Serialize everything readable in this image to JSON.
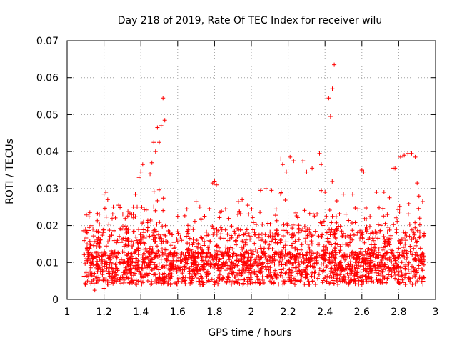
{
  "chart_data": {
    "type": "scatter",
    "title": "Day 218 of 2019, Rate Of TEC Index for receiver wilu",
    "xlabel": "GPS time / hours",
    "ylabel": "ROTI / TECUs",
    "xlim": [
      1,
      3
    ],
    "ylim": [
      0,
      0.07
    ],
    "xticks": [
      1,
      1.2,
      1.4,
      1.6,
      1.8,
      2,
      2.2,
      2.4,
      2.6,
      2.8,
      3
    ],
    "xtick_labels": [
      "1",
      "1.2",
      "1.4",
      "1.6",
      "1.8",
      "2",
      "2.2",
      "2.4",
      "2.6",
      "2.8",
      "3"
    ],
    "yticks": [
      0,
      0.01,
      0.02,
      0.03,
      0.04,
      0.05,
      0.06,
      0.07
    ],
    "ytick_labels": [
      "0",
      "0.01",
      "0.02",
      "0.03",
      "0.04",
      "0.05",
      "0.06",
      "0.07"
    ],
    "grid": true,
    "marker": "+",
    "marker_color": "#ff0000",
    "series": [
      {
        "name": "ROTI",
        "x_range": [
          1.09,
          2.94
        ],
        "approx_point_count": 2400,
        "note": "dense band mostly between 0.003 and 0.02 TECU; values below are representative readings of the visible peaks and envelope",
        "points": [
          [
            1.1,
            0.019
          ],
          [
            1.12,
            0.0195
          ],
          [
            1.14,
            0.019
          ],
          [
            1.16,
            0.0185
          ],
          [
            1.2,
            0.0285
          ],
          [
            1.21,
            0.029
          ],
          [
            1.22,
            0.027
          ],
          [
            1.25,
            0.025
          ],
          [
            1.28,
            0.0255
          ],
          [
            1.35,
            0.023
          ],
          [
            1.38,
            0.025
          ],
          [
            1.39,
            0.033
          ],
          [
            1.4,
            0.0345
          ],
          [
            1.41,
            0.0365
          ],
          [
            1.45,
            0.034
          ],
          [
            1.46,
            0.037
          ],
          [
            1.47,
            0.0425
          ],
          [
            1.48,
            0.04
          ],
          [
            1.49,
            0.0465
          ],
          [
            1.5,
            0.0425
          ],
          [
            1.51,
            0.047
          ],
          [
            1.52,
            0.0545
          ],
          [
            1.53,
            0.0485
          ],
          [
            1.6,
            0.0225
          ],
          [
            1.65,
            0.0245
          ],
          [
            1.7,
            0.0265
          ],
          [
            1.72,
            0.025
          ],
          [
            1.79,
            0.0315
          ],
          [
            1.8,
            0.032
          ],
          [
            1.81,
            0.031
          ],
          [
            1.86,
            0.0245
          ],
          [
            1.93,
            0.0265
          ],
          [
            1.95,
            0.027
          ],
          [
            1.98,
            0.0255
          ],
          [
            2.05,
            0.0295
          ],
          [
            2.08,
            0.03
          ],
          [
            2.11,
            0.0295
          ],
          [
            2.16,
            0.038
          ],
          [
            2.17,
            0.0365
          ],
          [
            2.19,
            0.0345
          ],
          [
            2.21,
            0.0385
          ],
          [
            2.23,
            0.0375
          ],
          [
            2.28,
            0.0375
          ],
          [
            2.3,
            0.0345
          ],
          [
            2.33,
            0.0355
          ],
          [
            2.37,
            0.0395
          ],
          [
            2.38,
            0.0365
          ],
          [
            2.4,
            0.029
          ],
          [
            2.42,
            0.0545
          ],
          [
            2.43,
            0.0495
          ],
          [
            2.44,
            0.057
          ],
          [
            2.45,
            0.0635
          ],
          [
            2.5,
            0.0285
          ],
          [
            2.55,
            0.0285
          ],
          [
            2.6,
            0.035
          ],
          [
            2.61,
            0.0345
          ],
          [
            2.68,
            0.029
          ],
          [
            2.72,
            0.029
          ],
          [
            2.75,
            0.0275
          ],
          [
            2.77,
            0.0355
          ],
          [
            2.78,
            0.0355
          ],
          [
            2.81,
            0.0385
          ],
          [
            2.83,
            0.039
          ],
          [
            2.85,
            0.0395
          ],
          [
            2.87,
            0.0395
          ],
          [
            2.89,
            0.0385
          ],
          [
            2.9,
            0.0315
          ],
          [
            2.91,
            0.028
          ],
          [
            2.93,
            0.0265
          ],
          [
            1.1,
            0.004
          ],
          [
            1.15,
            0.0025
          ],
          [
            1.2,
            0.003
          ],
          [
            1.3,
            0.006
          ],
          [
            1.4,
            0.005
          ],
          [
            1.5,
            0.006
          ],
          [
            1.6,
            0.0055
          ],
          [
            1.7,
            0.006
          ],
          [
            1.8,
            0.004
          ],
          [
            1.9,
            0.005
          ],
          [
            2.0,
            0.006
          ],
          [
            2.1,
            0.0065
          ],
          [
            2.2,
            0.005
          ],
          [
            2.3,
            0.006
          ],
          [
            2.4,
            0.006
          ],
          [
            2.5,
            0.006
          ],
          [
            2.6,
            0.004
          ],
          [
            2.7,
            0.005
          ],
          [
            2.8,
            0.0045
          ],
          [
            2.9,
            0.005
          ]
        ]
      }
    ]
  }
}
